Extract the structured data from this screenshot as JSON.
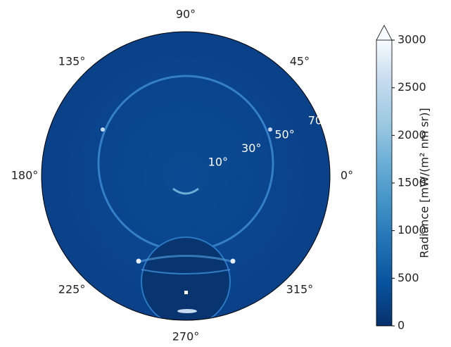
{
  "chart_data": {
    "type": "polar-image",
    "theta_ticks": [
      {
        "value": 0,
        "label": "0°"
      },
      {
        "value": 45,
        "label": "45°"
      },
      {
        "value": 90,
        "label": "90°"
      },
      {
        "value": 135,
        "label": "135°"
      },
      {
        "value": 180,
        "label": "180°"
      },
      {
        "value": 225,
        "label": "225°"
      },
      {
        "value": 270,
        "label": "270°"
      },
      {
        "value": 315,
        "label": "315°"
      }
    ],
    "rlim": [
      0,
      80
    ],
    "rticks": [
      {
        "value": 10,
        "label": "10°"
      },
      {
        "value": 30,
        "label": "30°"
      },
      {
        "value": 50,
        "label": "50°"
      },
      {
        "value": 70,
        "label": "70°"
      }
    ],
    "rlabel_angle": 22.5,
    "colorbar": {
      "label": "Radiance [mW/(m² nm sr)]",
      "lim": [
        0,
        3000
      ],
      "ticks": [
        0,
        500,
        1000,
        1500,
        2000,
        2500,
        3000
      ],
      "colors": [
        "#08306b",
        "#08519c",
        "#2171b5",
        "#4292c6",
        "#6baed6",
        "#9ecae1",
        "#c6dbef",
        "#f7fbff"
      ]
    }
  }
}
